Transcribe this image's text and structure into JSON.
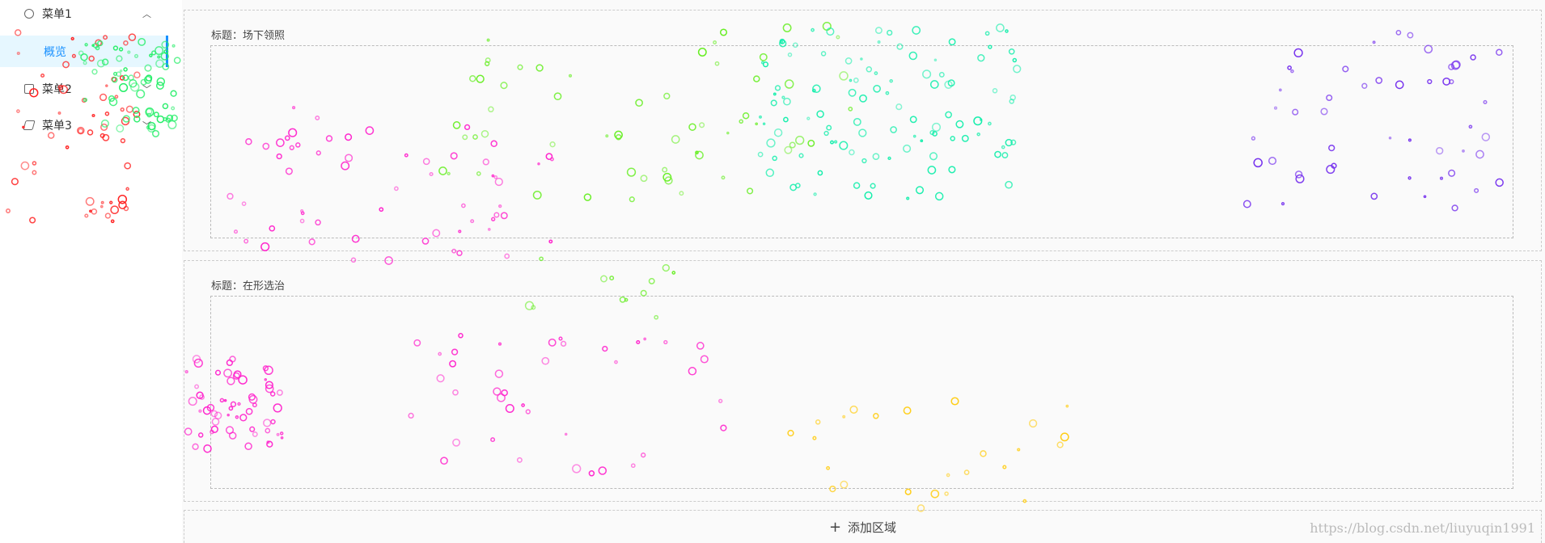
{
  "sidebar": {
    "menus": [
      {
        "label": "菜单1",
        "items": [
          "概览"
        ]
      },
      {
        "label": "菜单2"
      },
      {
        "label": "菜单3"
      }
    ]
  },
  "panels": [
    {
      "title": "标题：场下领照"
    },
    {
      "title": "标题：在形选治"
    }
  ],
  "add_area": "添加区域",
  "watermark": "https://blog.csdn.net/liuyuqin1991"
}
